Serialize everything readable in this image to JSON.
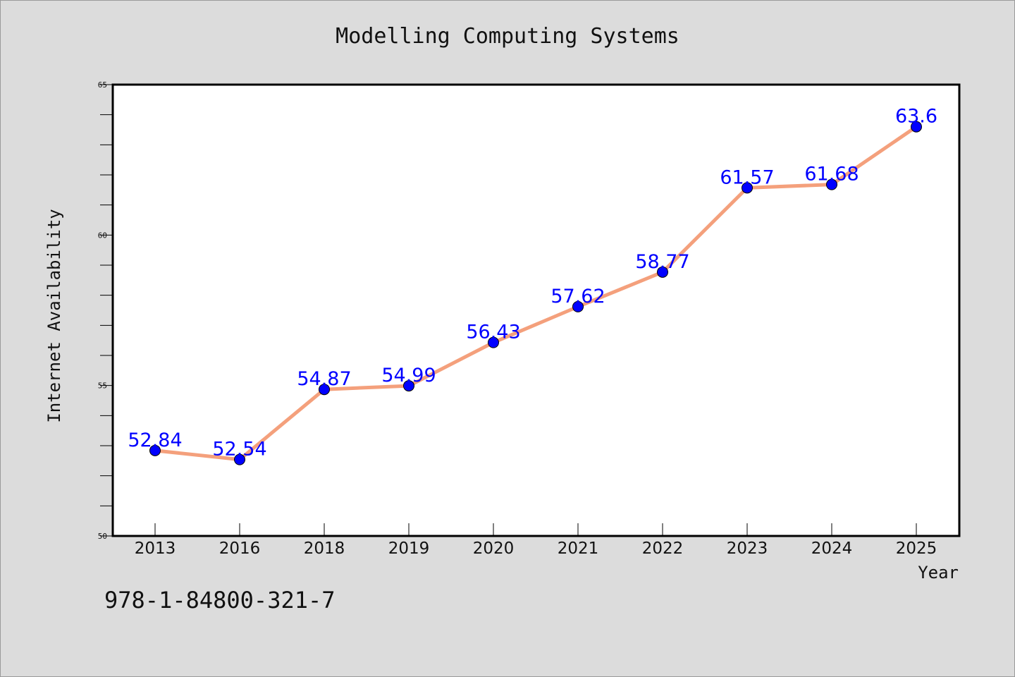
{
  "chart_data": {
    "type": "line",
    "title": "Modelling Computing Systems",
    "xlabel": "Year",
    "ylabel": "Internet Availability",
    "categories": [
      "2013",
      "2016",
      "2018",
      "2019",
      "2020",
      "2021",
      "2022",
      "2023",
      "2024",
      "2025"
    ],
    "series": [
      {
        "values": [
          52.84,
          52.54,
          54.87,
          54.99,
          56.43,
          57.62,
          58.77,
          61.57,
          61.68,
          63.6
        ],
        "labels": [
          "52.84",
          "52.54",
          "54.87",
          "54.99",
          "56.43",
          "57.62",
          "58.77",
          "61.57",
          "61.68",
          "63.6"
        ]
      }
    ],
    "ylim": [
      50,
      65
    ],
    "yticks": [
      "50",
      "55",
      "60",
      "65"
    ],
    "grid": false,
    "colors": {
      "line": "#f4a07c",
      "marker": "#0000ff",
      "data_label": "#0000ff",
      "plot_background": "#ffffff",
      "figure_background": "#dcdcdc"
    }
  },
  "footer": {
    "code": "978-1-84800-321-7"
  }
}
